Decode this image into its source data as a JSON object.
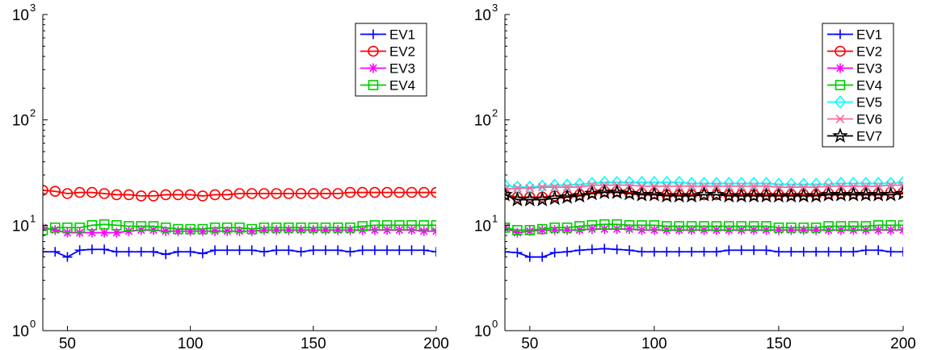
{
  "chart_data": [
    {
      "type": "line",
      "xlim": [
        40,
        200
      ],
      "ylim": [
        1,
        1000
      ],
      "yscale": "log",
      "xticks": [
        "50",
        "100",
        "150",
        "200"
      ],
      "yticks": [
        "10",
        "10",
        "10",
        "10"
      ],
      "ytick_exponents": [
        "0",
        "1",
        "2",
        "3"
      ],
      "legend_position": "top-right",
      "x": [
        40,
        45,
        50,
        55,
        60,
        65,
        70,
        75,
        80,
        85,
        90,
        95,
        100,
        105,
        110,
        115,
        120,
        125,
        130,
        135,
        140,
        145,
        150,
        155,
        160,
        165,
        170,
        175,
        180,
        185,
        190,
        195,
        200
      ],
      "series": [
        {
          "name": "EV1",
          "color": "#0000ff",
          "marker": "plus",
          "values": [
            5.6,
            5.6,
            5.0,
            5.8,
            5.9,
            5.9,
            5.6,
            5.6,
            5.6,
            5.6,
            5.3,
            5.6,
            5.6,
            5.4,
            5.8,
            5.8,
            5.8,
            5.8,
            5.6,
            5.8,
            5.8,
            5.6,
            5.8,
            5.8,
            5.8,
            5.6,
            5.8,
            5.8,
            5.8,
            5.8,
            5.8,
            5.8,
            5.6
          ]
        },
        {
          "name": "EV2",
          "color": "#ff0000",
          "marker": "circle",
          "values": [
            21.5,
            21.0,
            20.0,
            20.5,
            20.5,
            20.0,
            19.5,
            19.5,
            19.0,
            19.0,
            19.5,
            19.5,
            19.5,
            19.0,
            19.5,
            19.5,
            20.0,
            20.0,
            20.0,
            20.0,
            20.0,
            20.0,
            20.0,
            20.0,
            20.0,
            20.5,
            20.5,
            20.5,
            20.5,
            20.5,
            20.5,
            20.5,
            20.5
          ]
        },
        {
          "name": "EV3",
          "color": "#ff00ff",
          "marker": "asterisk",
          "values": [
            9.5,
            9.0,
            8.5,
            8.5,
            8.5,
            8.5,
            8.5,
            8.8,
            9.0,
            9.0,
            8.8,
            8.8,
            8.8,
            8.8,
            8.8,
            8.8,
            8.8,
            8.8,
            9.0,
            9.0,
            9.0,
            9.0,
            9.0,
            9.0,
            9.0,
            9.0,
            9.0,
            9.0,
            9.0,
            9.0,
            9.0,
            8.8,
            8.8
          ]
        },
        {
          "name": "EV4",
          "color": "#00cc00",
          "marker": "square",
          "values": [
            9.0,
            9.5,
            9.5,
            9.5,
            10.0,
            10.2,
            10.0,
            9.8,
            9.8,
            9.8,
            9.5,
            9.2,
            9.2,
            9.2,
            9.5,
            9.5,
            9.5,
            9.2,
            9.5,
            9.5,
            9.5,
            9.5,
            9.5,
            9.5,
            9.5,
            9.5,
            9.8,
            10.0,
            10.0,
            10.0,
            10.0,
            10.0,
            10.0
          ]
        }
      ]
    },
    {
      "type": "line",
      "xlim": [
        40,
        200
      ],
      "ylim": [
        1,
        1000
      ],
      "yscale": "log",
      "xticks": [
        "50",
        "100",
        "150",
        "200"
      ],
      "yticks": [
        "10",
        "10",
        "10",
        "10"
      ],
      "ytick_exponents": [
        "0",
        "1",
        "2",
        "3"
      ],
      "legend_position": "top-right",
      "x": [
        40,
        45,
        50,
        55,
        60,
        65,
        70,
        75,
        80,
        85,
        90,
        95,
        100,
        105,
        110,
        115,
        120,
        125,
        130,
        135,
        140,
        145,
        150,
        155,
        160,
        165,
        170,
        175,
        180,
        185,
        190,
        195,
        200
      ],
      "series": [
        {
          "name": "EV1",
          "color": "#0000ff",
          "marker": "plus",
          "values": [
            5.6,
            5.5,
            5.0,
            5.0,
            5.5,
            5.6,
            5.8,
            5.9,
            6.0,
            5.9,
            5.8,
            5.6,
            5.6,
            5.6,
            5.6,
            5.6,
            5.6,
            5.6,
            5.8,
            5.8,
            5.8,
            5.8,
            5.6,
            5.6,
            5.6,
            5.6,
            5.6,
            5.6,
            5.6,
            5.8,
            5.8,
            5.6,
            5.6
          ]
        },
        {
          "name": "EV2",
          "color": "#ff0000",
          "marker": "circle",
          "values": [
            19.5,
            18.5,
            18.5,
            18.5,
            19.0,
            19.0,
            19.5,
            20.5,
            21.0,
            21.0,
            20.5,
            20.0,
            20.0,
            19.5,
            19.5,
            19.5,
            19.5,
            19.5,
            19.5,
            19.5,
            19.5,
            19.5,
            19.5,
            19.5,
            19.5,
            19.5,
            20.0,
            20.0,
            20.0,
            20.0,
            20.0,
            20.5,
            20.5
          ]
        },
        {
          "name": "EV3",
          "color": "#ff00ff",
          "marker": "asterisk",
          "values": [
            9.5,
            8.5,
            8.8,
            9.0,
            9.0,
            9.0,
            9.0,
            9.2,
            9.2,
            9.2,
            9.2,
            9.0,
            9.0,
            9.0,
            9.0,
            9.0,
            9.0,
            9.0,
            9.0,
            9.0,
            9.0,
            9.0,
            9.0,
            9.0,
            9.0,
            9.0,
            9.0,
            9.0,
            9.0,
            9.0,
            9.0,
            9.0,
            9.0
          ]
        },
        {
          "name": "EV4",
          "color": "#00cc00",
          "marker": "square",
          "values": [
            9.5,
            9.0,
            9.0,
            9.2,
            9.5,
            9.5,
            9.8,
            10.0,
            10.2,
            10.2,
            10.0,
            10.0,
            10.0,
            9.8,
            9.8,
            9.8,
            9.8,
            9.8,
            9.8,
            9.8,
            9.8,
            9.8,
            9.5,
            9.5,
            9.5,
            9.5,
            9.8,
            9.8,
            9.8,
            9.8,
            10.0,
            10.0,
            10.0
          ]
        },
        {
          "name": "EV5",
          "color": "#00ffff",
          "marker": "diamond",
          "values": [
            24.0,
            23.0,
            23.0,
            23.5,
            24.0,
            24.0,
            24.5,
            25.0,
            25.5,
            25.5,
            25.5,
            25.5,
            25.5,
            25.5,
            25.5,
            25.0,
            25.0,
            25.0,
            25.0,
            25.0,
            25.0,
            25.0,
            24.5,
            24.5,
            24.5,
            24.5,
            24.5,
            25.0,
            25.0,
            25.0,
            25.0,
            25.0,
            25.5
          ]
        },
        {
          "name": "EV6",
          "color": "#ff6699",
          "marker": "x",
          "values": [
            22.0,
            22.5,
            22.5,
            23.0,
            23.0,
            23.0,
            23.0,
            24.0,
            24.0,
            24.0,
            24.0,
            23.5,
            23.5,
            23.5,
            23.5,
            23.5,
            23.5,
            23.5,
            23.5,
            23.5,
            23.5,
            23.5,
            23.0,
            23.0,
            23.0,
            23.0,
            23.5,
            23.5,
            23.5,
            23.5,
            23.5,
            24.0,
            24.0
          ]
        },
        {
          "name": "EV7",
          "color": "#000000",
          "marker": "star",
          "values": [
            19.5,
            17.5,
            17.5,
            17.5,
            18.0,
            18.5,
            19.0,
            20.0,
            20.5,
            20.5,
            20.0,
            19.5,
            19.5,
            19.0,
            19.0,
            19.0,
            19.5,
            19.5,
            19.0,
            19.0,
            19.0,
            19.0,
            19.0,
            19.0,
            19.0,
            19.0,
            19.5,
            19.5,
            19.5,
            19.5,
            19.5,
            19.5,
            20.0
          ]
        }
      ]
    }
  ]
}
